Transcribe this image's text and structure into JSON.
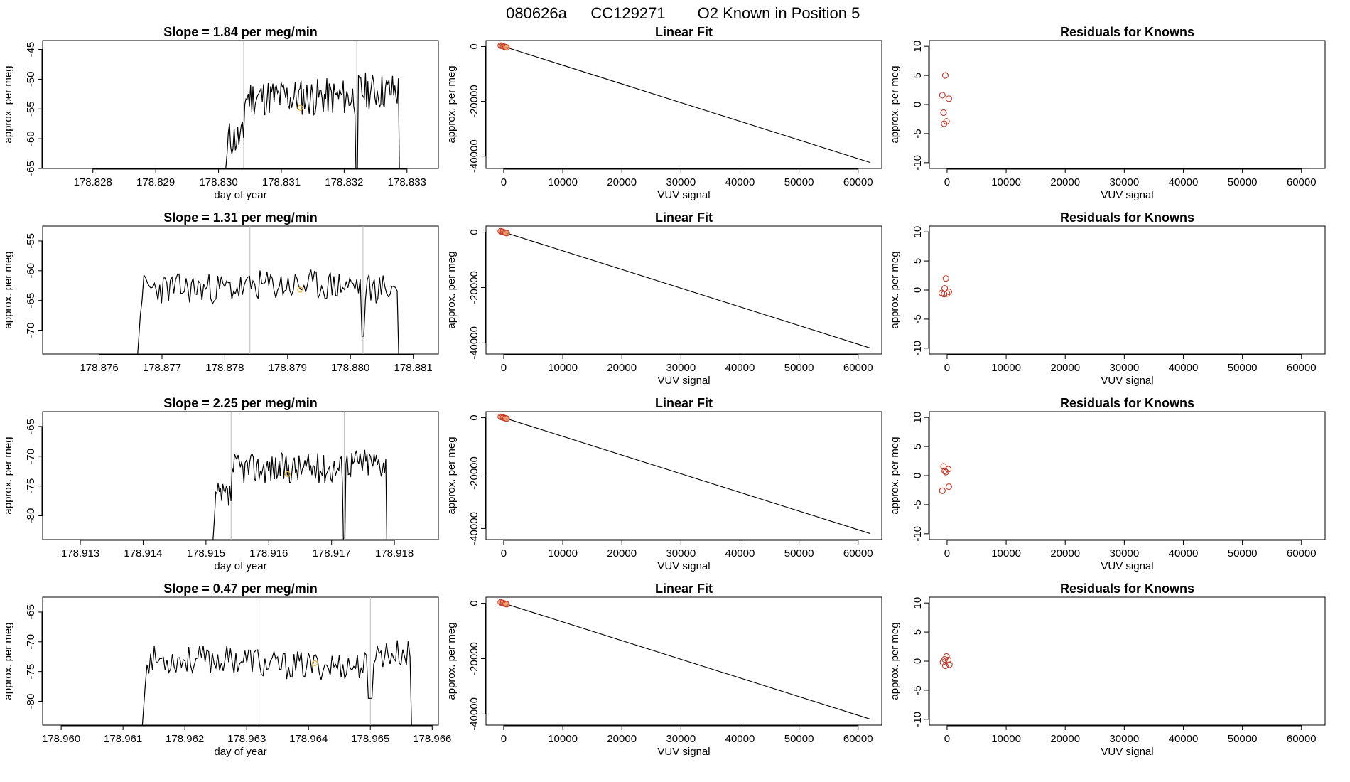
{
  "figure": {
    "title_parts": [
      "080626a",
      "CC129271",
      "O2 Known in Position  5"
    ]
  },
  "chart_data": [
    {
      "type": "line",
      "panel": "time-series",
      "row": 1,
      "title": "Slope =  1.84  per meg/min",
      "xlabel": "day of year",
      "ylabel": "approx. per meg",
      "xlim": [
        178.8272,
        178.8335
      ],
      "ylim": [
        -65,
        -43.5
      ],
      "xticks": [
        178.828,
        178.829,
        178.83,
        178.831,
        178.832,
        178.833
      ],
      "xtick_labels": [
        "178.828",
        "178.829",
        "178.830",
        "178.831",
        "178.832",
        "178.833"
      ],
      "yticks": [
        -65,
        -60,
        -55,
        -50,
        -45
      ],
      "ytick_labels": [
        "-65",
        "-60",
        "-55",
        "-50",
        "-45"
      ],
      "vlines": [
        178.8304,
        178.8322
      ],
      "marker": {
        "x": 178.8313,
        "y": -54.8
      },
      "x_start": 178.8301,
      "x_end": 178.8329,
      "y_start": -67,
      "y_end": -67,
      "trace_seed": 11,
      "trace_base": [
        -60,
        -53,
        -52
      ],
      "trace_amp": 3.2,
      "dropouts": [
        {
          "x": 178.8322,
          "y": -67
        }
      ]
    },
    {
      "type": "scatter",
      "panel": "linear-fit",
      "row": 1,
      "title": "Linear Fit",
      "xlabel": "VUV signal",
      "ylabel": "approx. per meg",
      "xlim": [
        -3000,
        64000
      ],
      "ylim": [
        -44500,
        2200
      ],
      "xticks": [
        0,
        10000,
        20000,
        30000,
        40000,
        50000,
        60000
      ],
      "xtick_labels": [
        "0",
        "10000",
        "20000",
        "30000",
        "40000",
        "50000",
        "60000"
      ],
      "yticks": [
        0,
        -20000,
        -40000
      ],
      "ytick_labels": [
        "0",
        "-20000",
        "-40000"
      ],
      "fit_line": {
        "x": [
          -600,
          62000
        ],
        "y": [
          410,
          -42300
        ]
      },
      "points": [
        {
          "x": -500,
          "y": 340
        },
        {
          "x": -300,
          "y": 200
        },
        {
          "x": -100,
          "y": 70
        },
        {
          "x": 100,
          "y": -70
        },
        {
          "x": 300,
          "y": -200
        },
        {
          "x": 500,
          "y": -340
        }
      ]
    },
    {
      "type": "scatter",
      "panel": "residuals",
      "row": 1,
      "title": "Residuals for Knowns",
      "xlabel": "VUV signal",
      "ylabel": "approx. per meg",
      "xlim": [
        -3000,
        64000
      ],
      "ylim": [
        -11,
        11
      ],
      "xticks": [
        0,
        10000,
        20000,
        30000,
        40000,
        50000,
        60000
      ],
      "xtick_labels": [
        "0",
        "10000",
        "20000",
        "30000",
        "40000",
        "50000",
        "60000"
      ],
      "yticks": [
        -10,
        -5,
        0,
        5,
        10
      ],
      "ytick_labels": [
        "-10",
        "-5",
        "0",
        "5",
        "10"
      ],
      "points": [
        {
          "x": -300,
          "y": 5
        },
        {
          "x": -800,
          "y": 1.6
        },
        {
          "x": 300,
          "y": 1
        },
        {
          "x": -600,
          "y": -1.4
        },
        {
          "x": -100,
          "y": -2.9
        },
        {
          "x": -500,
          "y": -3.3
        }
      ]
    },
    {
      "type": "line",
      "panel": "time-series",
      "row": 2,
      "title": "Slope =  1.31  per meg/min",
      "xlabel": "",
      "ylabel": "approx. per meg",
      "xlim": [
        178.8751,
        178.8814
      ],
      "ylim": [
        -74,
        -52.5
      ],
      "xticks": [
        178.876,
        178.877,
        178.878,
        178.879,
        178.88,
        178.881
      ],
      "xtick_labels": [
        "178.876",
        "178.877",
        "178.878",
        "178.879",
        "178.880",
        "178.881"
      ],
      "yticks": [
        -70,
        -65,
        -60,
        -55
      ],
      "ytick_labels": [
        "-70",
        "-65",
        "-60",
        "-55"
      ],
      "vlines": [
        178.8784,
        178.8802
      ],
      "marker": {
        "x": 178.8792,
        "y": -63.2
      },
      "x_start": 178.8766,
      "x_end": 178.8808,
      "y_start": -76,
      "y_end": -76,
      "trace_seed": 23,
      "trace_base": [
        -63,
        -62.5,
        -63
      ],
      "trace_amp": 2.6,
      "dropouts": [
        {
          "x": 178.8802,
          "y": -71
        }
      ]
    },
    {
      "type": "scatter",
      "panel": "linear-fit",
      "row": 2,
      "title": "Linear Fit",
      "xlabel": "VUV signal",
      "ylabel": "approx. per meg",
      "xlim": [
        -3000,
        64000
      ],
      "ylim": [
        -44000,
        2200
      ],
      "xticks": [
        0,
        10000,
        20000,
        30000,
        40000,
        50000,
        60000
      ],
      "xtick_labels": [
        "0",
        "10000",
        "20000",
        "30000",
        "40000",
        "50000",
        "60000"
      ],
      "yticks": [
        0,
        -20000,
        -40000
      ],
      "ytick_labels": [
        "0",
        "-20000",
        "-40000"
      ],
      "fit_line": {
        "x": [
          -600,
          62000
        ],
        "y": [
          410,
          -41800
        ]
      },
      "points": [
        {
          "x": -500,
          "y": 340
        },
        {
          "x": -300,
          "y": 200
        },
        {
          "x": -100,
          "y": 70
        },
        {
          "x": 100,
          "y": -70
        },
        {
          "x": 300,
          "y": -200
        },
        {
          "x": 500,
          "y": -340
        }
      ]
    },
    {
      "type": "scatter",
      "panel": "residuals",
      "row": 2,
      "title": "Residuals for Knowns",
      "xlabel": "VUV signal",
      "ylabel": "approx. per meg",
      "xlim": [
        -3000,
        64000
      ],
      "ylim": [
        -11,
        11
      ],
      "xticks": [
        0,
        10000,
        20000,
        30000,
        40000,
        50000,
        60000
      ],
      "xtick_labels": [
        "0",
        "10000",
        "20000",
        "30000",
        "40000",
        "50000",
        "60000"
      ],
      "yticks": [
        -10,
        -5,
        0,
        5,
        10
      ],
      "ytick_labels": [
        "-10",
        "-5",
        "0",
        "5",
        "10"
      ],
      "points": [
        {
          "x": -200,
          "y": 2
        },
        {
          "x": -400,
          "y": 0.3
        },
        {
          "x": -900,
          "y": -0.5
        },
        {
          "x": -500,
          "y": -0.7
        },
        {
          "x": 0,
          "y": -0.6
        },
        {
          "x": 300,
          "y": -0.3
        }
      ]
    },
    {
      "type": "line",
      "panel": "time-series",
      "row": 3,
      "title": "Slope =  2.25  per meg/min",
      "xlabel": "day of year",
      "ylabel": "approx. per meg",
      "xlim": [
        178.9124,
        178.9187
      ],
      "ylim": [
        -84,
        -62.5
      ],
      "xticks": [
        178.913,
        178.914,
        178.915,
        178.916,
        178.917,
        178.918
      ],
      "xtick_labels": [
        "178.913",
        "178.914",
        "178.915",
        "178.916",
        "178.917",
        "178.918"
      ],
      "yticks": [
        -80,
        -75,
        -70,
        -65
      ],
      "ytick_labels": [
        "-80",
        "-75",
        "-70",
        "-65"
      ],
      "vlines": [
        178.9154,
        178.9172
      ],
      "marker": {
        "x": 178.9163,
        "y": -73
      },
      "x_start": 178.9151,
      "x_end": 178.9179,
      "y_start": -86,
      "y_end": -86,
      "trace_seed": 37,
      "trace_base": [
        -77,
        -72,
        -71
      ],
      "trace_amp": 2.6,
      "dropouts": [
        {
          "x": 178.9172,
          "y": -86
        }
      ]
    },
    {
      "type": "scatter",
      "panel": "linear-fit",
      "row": 3,
      "title": "Linear Fit",
      "xlabel": "VUV signal",
      "ylabel": "approx. per meg",
      "xlim": [
        -3000,
        64000
      ],
      "ylim": [
        -44000,
        2200
      ],
      "xticks": [
        0,
        10000,
        20000,
        30000,
        40000,
        50000,
        60000
      ],
      "xtick_labels": [
        "0",
        "10000",
        "20000",
        "30000",
        "40000",
        "50000",
        "60000"
      ],
      "yticks": [
        0,
        -20000,
        -40000
      ],
      "ytick_labels": [
        "0",
        "-20000",
        "-40000"
      ],
      "fit_line": {
        "x": [
          -600,
          62000
        ],
        "y": [
          410,
          -41800
        ]
      },
      "points": [
        {
          "x": -500,
          "y": 340
        },
        {
          "x": -300,
          "y": 200
        },
        {
          "x": -100,
          "y": 70
        },
        {
          "x": 100,
          "y": -70
        },
        {
          "x": 300,
          "y": -200
        },
        {
          "x": 500,
          "y": -340
        }
      ]
    },
    {
      "type": "scatter",
      "panel": "residuals",
      "row": 3,
      "title": "Residuals for Knowns",
      "xlabel": "VUV signal",
      "ylabel": "approx. per meg",
      "xlim": [
        -3000,
        64000
      ],
      "ylim": [
        -11,
        11
      ],
      "xticks": [
        0,
        10000,
        20000,
        30000,
        40000,
        50000,
        60000
      ],
      "xtick_labels": [
        "0",
        "10000",
        "20000",
        "30000",
        "40000",
        "50000",
        "60000"
      ],
      "yticks": [
        -10,
        -5,
        0,
        5,
        10
      ],
      "ytick_labels": [
        "-10",
        "-5",
        "0",
        "5",
        "10"
      ],
      "points": [
        {
          "x": -600,
          "y": 1.6
        },
        {
          "x": -400,
          "y": 0.8
        },
        {
          "x": 200,
          "y": 1.1
        },
        {
          "x": -200,
          "y": 0.6
        },
        {
          "x": 300,
          "y": -1.9
        },
        {
          "x": -800,
          "y": -2.6
        }
      ]
    },
    {
      "type": "line",
      "panel": "time-series",
      "row": 4,
      "title": "Slope =  0.47  per meg/min",
      "xlabel": "day of year",
      "ylabel": "approx. per meg",
      "xlim": [
        178.9597,
        178.9661
      ],
      "ylim": [
        -84,
        -62.5
      ],
      "xticks": [
        178.96,
        178.961,
        178.962,
        178.963,
        178.964,
        178.965,
        178.966
      ],
      "xtick_labels": [
        "178.960",
        "178.961",
        "178.962",
        "178.963",
        "178.964",
        "178.965",
        "178.966"
      ],
      "yticks": [
        -80,
        -75,
        -70,
        -65
      ],
      "ytick_labels": [
        "-80",
        "-75",
        "-70",
        "-65"
      ],
      "vlines": [
        178.9632,
        178.965
      ],
      "marker": {
        "x": 178.9641,
        "y": -73.6
      },
      "x_start": 178.9613,
      "x_end": 178.9657,
      "y_start": -86,
      "y_end": -86,
      "trace_seed": 53,
      "trace_base": [
        -73,
        -74,
        -72
      ],
      "trace_amp": 2.4,
      "dropouts": [
        {
          "x": 178.965,
          "y": -79.5
        }
      ]
    },
    {
      "type": "scatter",
      "panel": "linear-fit",
      "row": 4,
      "title": "Linear Fit",
      "xlabel": "VUV signal",
      "ylabel": "approx. per meg",
      "xlim": [
        -3000,
        64000
      ],
      "ylim": [
        -44000,
        2200
      ],
      "xticks": [
        0,
        10000,
        20000,
        30000,
        40000,
        50000,
        60000
      ],
      "xtick_labels": [
        "0",
        "10000",
        "20000",
        "30000",
        "40000",
        "50000",
        "60000"
      ],
      "yticks": [
        0,
        -20000,
        -40000
      ],
      "ytick_labels": [
        "0",
        "-20000",
        "-40000"
      ],
      "fit_line": {
        "x": [
          -600,
          62000
        ],
        "y": [
          410,
          -41800
        ]
      },
      "points": [
        {
          "x": -500,
          "y": 340
        },
        {
          "x": -300,
          "y": 200
        },
        {
          "x": -100,
          "y": 70
        },
        {
          "x": 100,
          "y": -70
        },
        {
          "x": 300,
          "y": -200
        },
        {
          "x": 500,
          "y": -340
        }
      ]
    },
    {
      "type": "scatter",
      "panel": "residuals",
      "row": 4,
      "title": "Residuals for Knowns",
      "xlabel": "VUV signal",
      "ylabel": "approx. per meg",
      "xlim": [
        -3000,
        64000
      ],
      "ylim": [
        -11,
        11
      ],
      "xticks": [
        0,
        10000,
        20000,
        30000,
        40000,
        50000,
        60000
      ],
      "xtick_labels": [
        "0",
        "10000",
        "20000",
        "30000",
        "40000",
        "50000",
        "60000"
      ],
      "yticks": [
        -10,
        -5,
        0,
        5,
        10
      ],
      "ytick_labels": [
        "-10",
        "-5",
        "0",
        "5",
        "10"
      ],
      "points": [
        {
          "x": -100,
          "y": 0.8
        },
        {
          "x": -400,
          "y": 0.3
        },
        {
          "x": 200,
          "y": 0.2
        },
        {
          "x": -700,
          "y": -0.2
        },
        {
          "x": 400,
          "y": -0.6
        },
        {
          "x": -300,
          "y": -0.8
        }
      ]
    }
  ],
  "colors": {
    "axis": "#000000",
    "trace": "#000000",
    "vline": "#bdbdbd",
    "marker": "#f5b335",
    "point_face": "#f2a46a",
    "point_edge": "#c0392b",
    "residual_point": "#c0392b"
  }
}
